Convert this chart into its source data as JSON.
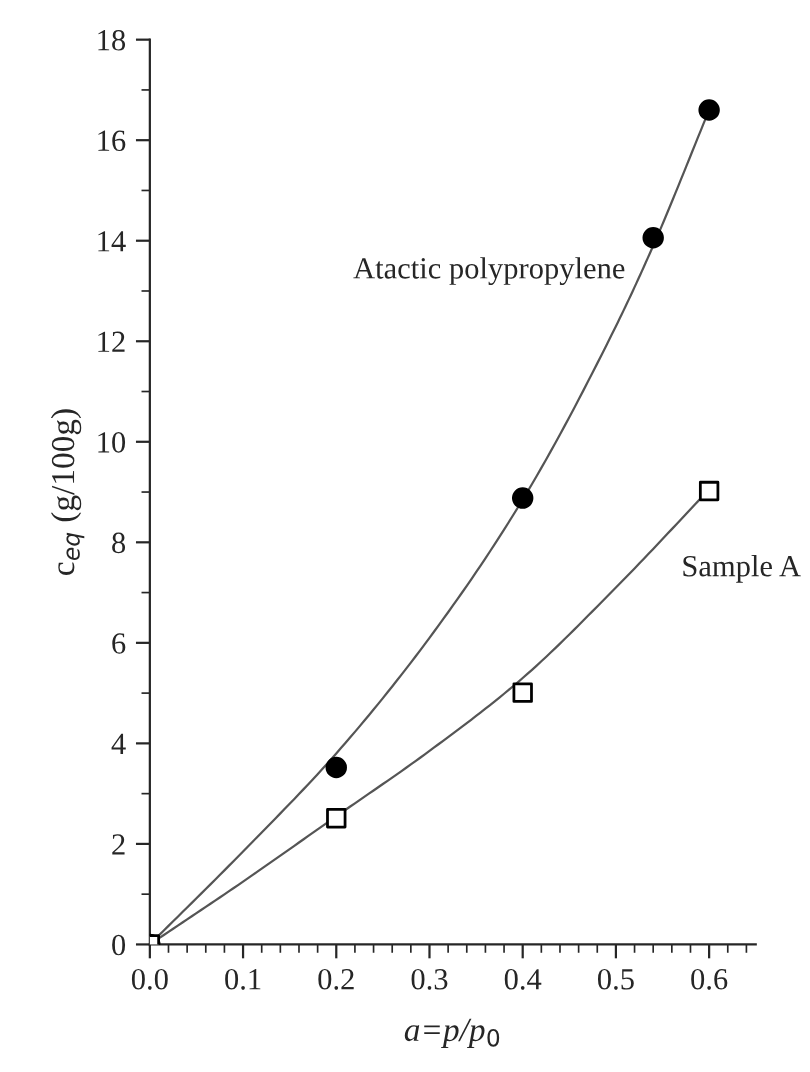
{
  "chart_data": {
    "type": "scatter",
    "xlabel": "a=p/p$_{0}$",
    "ylabel": "c$_{eq}$ (g/100g)",
    "xlim": [
      0,
      0.65
    ],
    "ylim": [
      0,
      18
    ],
    "xticks": [
      {
        "value": 0,
        "label": "0.0"
      },
      0.1,
      0.2,
      0.3,
      0.4,
      0.5,
      0.6
    ],
    "yticks": [
      0,
      2,
      4,
      6,
      8,
      10,
      12,
      14,
      16,
      18
    ],
    "grid": false,
    "legend": false,
    "series": [
      {
        "type": "line",
        "color": "#555555",
        "marker": "none",
        "line_style": "solid",
        "x": [
          0,
          0.1,
          0.2,
          0.3,
          0.4,
          0.5,
          0.54,
          0.6
        ],
        "values": [
          0,
          1.85,
          3.8,
          6.1,
          8.85,
          12.3,
          13.9,
          16.6
        ]
      },
      {
        "type": "line",
        "color": "#555555",
        "marker": "none",
        "line_style": "solid",
        "x": [
          0,
          0.1,
          0.2,
          0.3,
          0.4,
          0.5,
          0.6
        ],
        "values": [
          0,
          1.25,
          2.55,
          3.85,
          5.3,
          7.1,
          9.05
        ]
      },
      {
        "name": "Atactic polypropylene",
        "color": "#000000",
        "marker": "circle",
        "x": [
          0,
          0.2,
          0.4,
          0.54,
          0.6
        ],
        "values": [
          0,
          3.52,
          8.88,
          14.06,
          16.6
        ]
      },
      {
        "name": "Sample A",
        "color": "#000000",
        "marker": "square",
        "x": [
          0,
          0.2,
          0.4,
          0.6
        ],
        "values": [
          0,
          2.51,
          5.01,
          9.02
        ]
      }
    ]
  }
}
